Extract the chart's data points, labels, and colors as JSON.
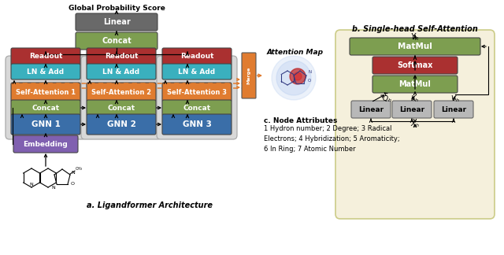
{
  "title_a": "a. Ligandformer Architecture",
  "title_b": "b. Single-head Self-Attention",
  "global_score_label": "Global Probability Score",
  "attention_map_label": "Attention Map",
  "node_attr_title": "c. Node Attributes",
  "node_attr_text": "1 Hydron number; 2 Degree; 3 Radical\nElectrons; 4 Hybridization; 5 Aromaticity;\n6 In Ring; 7 Atomic Number",
  "colors": {
    "linear_gray": "#696969",
    "concat_green": "#7d9e50",
    "readout_red": "#aa3030",
    "ln_add_teal": "#3ab0be",
    "self_att_orange": "#e07c30",
    "gnn_blue": "#3a6ea8",
    "embedding_purple": "#8060b0",
    "matmul_green": "#7d9e50",
    "softmax_red": "#aa3030",
    "linear_light": "#b8b8b8",
    "bg_module": "#e0e0e0",
    "bg_self_att_fill": "#f5f0dc",
    "bg_self_att_edge": "#cccc88",
    "white": "#ffffff",
    "black": "#000000",
    "merge_orange": "#e07c30",
    "dash_orange": "#e07c30"
  },
  "fig_width": 6.4,
  "fig_height": 3.24
}
